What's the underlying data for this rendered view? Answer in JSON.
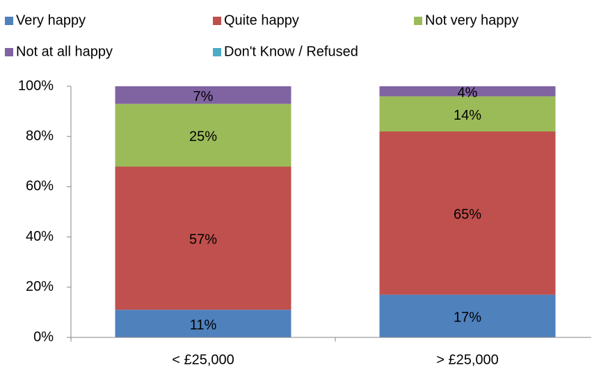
{
  "chart_data": {
    "type": "stacked_bar",
    "categories": [
      "< £25,000",
      "> £25,000"
    ],
    "series": [
      {
        "name": "Very happy",
        "color": "#4f81bd",
        "values": [
          11,
          17
        ],
        "value_labels": [
          "11%",
          "17%"
        ]
      },
      {
        "name": "Quite happy",
        "color": "#c0504d",
        "values": [
          57,
          65
        ],
        "value_labels": [
          "57%",
          "65%"
        ]
      },
      {
        "name": "Not very happy",
        "color": "#9bbb59",
        "values": [
          25,
          14
        ],
        "value_labels": [
          "25%",
          "14%"
        ]
      },
      {
        "name": "Not at all happy",
        "color": "#8064a2",
        "values": [
          7,
          4
        ],
        "value_labels": [
          "7%",
          "4%"
        ]
      },
      {
        "name": "Don't Know / Refused",
        "color": "#4bacc6",
        "values": [
          0,
          0
        ]
      }
    ],
    "ylim": [
      0,
      100
    ],
    "yticks": [
      {
        "value": 0,
        "label": "0%"
      },
      {
        "value": 20,
        "label": "20%"
      },
      {
        "value": 40,
        "label": "40%"
      },
      {
        "value": 60,
        "label": "60%"
      },
      {
        "value": 80,
        "label": "80%"
      },
      {
        "value": 100,
        "label": "100%"
      }
    ],
    "grid": false,
    "legend": "top"
  }
}
